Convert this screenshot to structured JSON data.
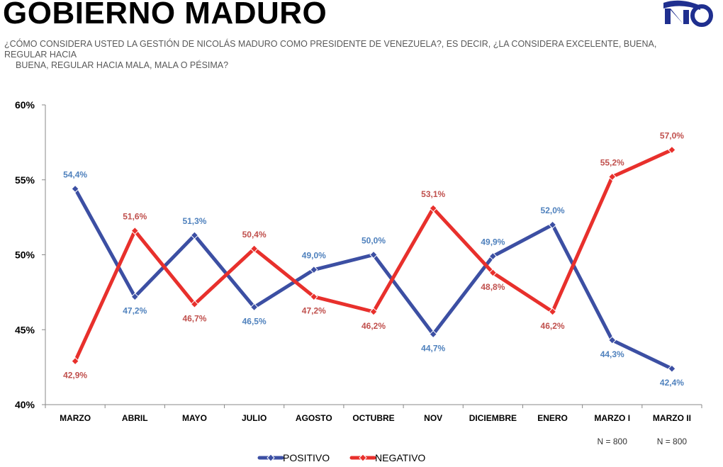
{
  "header": {
    "title": "GOBIERNO MADURO",
    "question_line1": "¿CÓMO CONSIDERA USTED LA GESTIÓN DE NICOLÁS MADURO COMO PRESIDENTE DE VENEZUELA?, ES DECIR, ¿LA CONSIDERA EXCELENTE, BUENA, REGULAR HACIA",
    "question_line2": "BUENA, REGULAR HACIA MALA, MALA O PÉSIMA?"
  },
  "chart_data": {
    "type": "line",
    "categories": [
      "MARZO",
      "ABRIL",
      "MAYO",
      "JULIO",
      "AGOSTO",
      "OCTUBRE",
      "NOV",
      "DICIEMBRE",
      "ENERO",
      "MARZO I",
      "MARZO II"
    ],
    "series": [
      {
        "name": "POSITIVO",
        "color": "#3c4fa3",
        "values": [
          54.4,
          47.2,
          51.3,
          46.5,
          49.0,
          50.0,
          44.7,
          49.9,
          52.0,
          44.3,
          42.4
        ],
        "labels": [
          "54,4%",
          "47,2%",
          "51,3%",
          "46,5%",
          "49,0%",
          "50,0%",
          "44,7%",
          "49,9%",
          "52,0%",
          "44,3%",
          "42,4%"
        ],
        "label_color": "#4f81bd"
      },
      {
        "name": "NEGATIVO",
        "color": "#e8302c",
        "values": [
          42.9,
          51.6,
          46.7,
          50.4,
          47.2,
          46.2,
          53.1,
          48.8,
          46.2,
          55.2,
          57.0
        ],
        "labels": [
          "42,9%",
          "51,6%",
          "46,7%",
          "50,4%",
          "47,2%",
          "46,2%",
          "53,1%",
          "48,8%",
          "46,2%",
          "55,2%",
          "57,0%"
        ],
        "label_color": "#c0504d"
      }
    ],
    "y_ticks": [
      "40%",
      "45%",
      "50%",
      "55%",
      "60%"
    ],
    "ylim": [
      40,
      60
    ],
    "notes": [
      {
        "category": "MARZO I",
        "text": "N = 800"
      },
      {
        "category": "MARZO II",
        "text": "N = 800"
      }
    ],
    "legend_placement": "bottom-center",
    "grid": false
  }
}
